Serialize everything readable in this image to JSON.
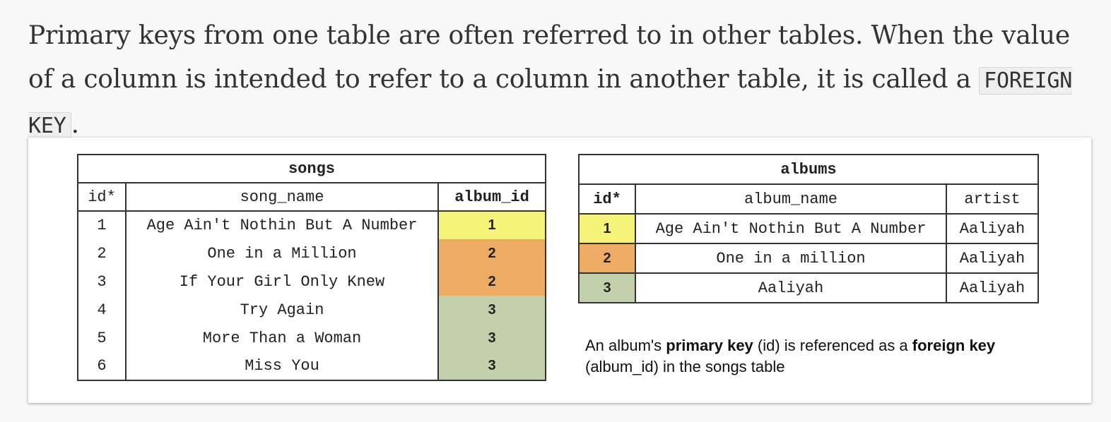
{
  "intro": {
    "part1": "Primary keys from one table are often referred to in other tables. When the value of a column is intended to refer to a column in another table, it is called a ",
    "code": "FOREIGN KEY",
    "part2": "."
  },
  "songs_table": {
    "title": "songs",
    "headers": {
      "id": "id*",
      "song_name": "song_name",
      "album_id": "album_id"
    },
    "rows": [
      {
        "id": "1",
        "song_name": "Age Ain't Nothin But A Number",
        "album_id": "1",
        "color": "#f7f37a"
      },
      {
        "id": "2",
        "song_name": "One in a Million",
        "album_id": "2",
        "color": "#edab63"
      },
      {
        "id": "3",
        "song_name": "If Your Girl Only Knew",
        "album_id": "2",
        "color": "#edab63"
      },
      {
        "id": "4",
        "song_name": "Try Again",
        "album_id": "3",
        "color": "#c2d1ab"
      },
      {
        "id": "5",
        "song_name": "More Than a Woman",
        "album_id": "3",
        "color": "#c2d1ab"
      },
      {
        "id": "6",
        "song_name": "Miss You",
        "album_id": "3",
        "color": "#c2d1ab"
      }
    ]
  },
  "albums_table": {
    "title": "albums",
    "headers": {
      "id": "id*",
      "album_name": "album_name",
      "artist": "artist"
    },
    "rows": [
      {
        "id": "1",
        "album_name": "Age Ain't Nothin But A Number",
        "artist": "Aaliyah",
        "color": "#f7f37a"
      },
      {
        "id": "2",
        "album_name": "One in a million",
        "artist": "Aaliyah",
        "color": "#edab63"
      },
      {
        "id": "3",
        "album_name": "Aaliyah",
        "artist": "Aaliyah",
        "color": "#c2d1ab"
      }
    ]
  },
  "caption": {
    "t1": "An album's ",
    "b1": "primary key",
    "t2": " (id) is referenced as a ",
    "b2": "foreign key",
    "t3": " (album_id) in the songs table"
  }
}
